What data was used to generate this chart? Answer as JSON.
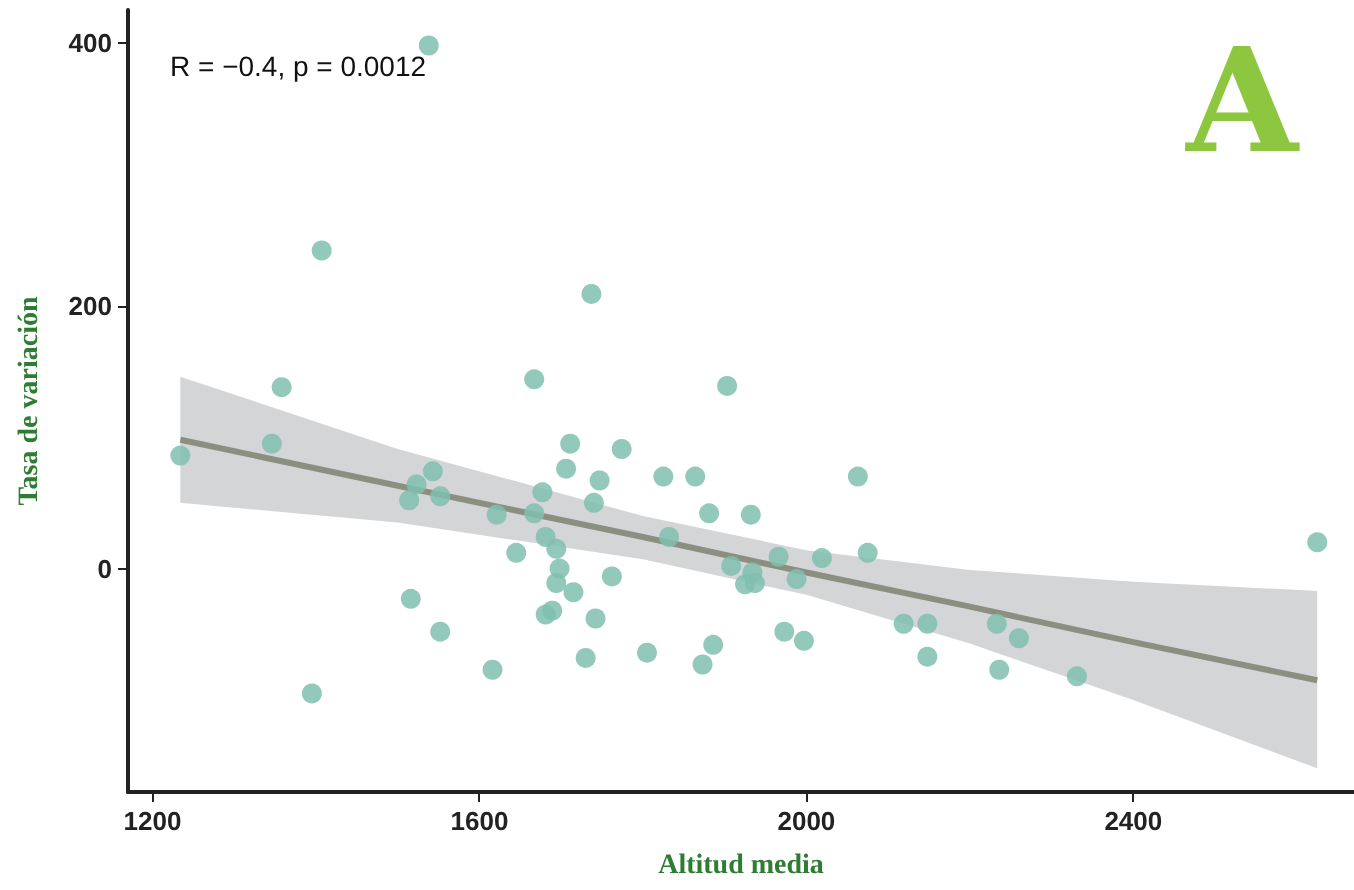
{
  "chart_data": {
    "type": "scatter",
    "xlabel": "Altitud media",
    "ylabel": "Tasa de variación",
    "annotations": [
      "R = −0.4, p = 0.0012",
      "A"
    ],
    "xlim": [
      1170,
      2670
    ],
    "xticks": [
      1200,
      1600,
      2000,
      2400
    ],
    "ylim": [
      -170,
      425
    ],
    "yticks": [
      0,
      200,
      400
    ],
    "grid": false,
    "series": [
      {
        "marker": "circle",
        "color": "#7fbfae",
        "x": [
          1234,
          1346,
          1358,
          1407,
          1395,
          1538,
          1514,
          1523,
          1543,
          1552,
          1516,
          1552,
          1616,
          1621,
          1645,
          1667,
          1677,
          1667,
          1681,
          1694,
          1698,
          1694,
          1715,
          1711,
          1706,
          1681,
          1689,
          1730,
          1742,
          1747,
          1740,
          1737,
          1774,
          1825,
          1864,
          1881,
          1932,
          2063,
          1832,
          1966,
          2019,
          2075,
          1908,
          1934,
          1925,
          1937,
          1988,
          1762,
          1805,
          1886,
          1873,
          1973,
          1997,
          2119,
          2148,
          2148,
          2233,
          2260,
          2236,
          2625,
          2331,
          1903
        ],
        "values": [
          86,
          95,
          138,
          242,
          -95,
          398,
          52,
          64,
          74,
          55,
          -23,
          -48,
          -77,
          41,
          12,
          144,
          58,
          42,
          24,
          15,
          0,
          -11,
          -18,
          95,
          76,
          -35,
          -32,
          -68,
          -38,
          67,
          50,
          209,
          91,
          70,
          70,
          42,
          41,
          70,
          24,
          9,
          8,
          12,
          2,
          -3,
          -12,
          -11,
          -8,
          -6,
          -64,
          -58,
          -73,
          -48,
          -55,
          -42,
          -42,
          -67,
          -42,
          -53,
          -77,
          20,
          -82,
          139
        ]
      },
      {
        "type": "line",
        "marker": "none",
        "color": "#8a8f80",
        "x": [
          1234,
          1500,
          1800,
          2000,
          2200,
          2400,
          2625
        ],
        "values": [
          98,
          63,
          24,
          -3,
          -29,
          -56,
          -85
        ],
        "lower": [
          50,
          35,
          7,
          -20,
          -57,
          -100,
          -152
        ],
        "upper": [
          146,
          91,
          40,
          14,
          -1,
          -10,
          -17
        ]
      }
    ]
  }
}
